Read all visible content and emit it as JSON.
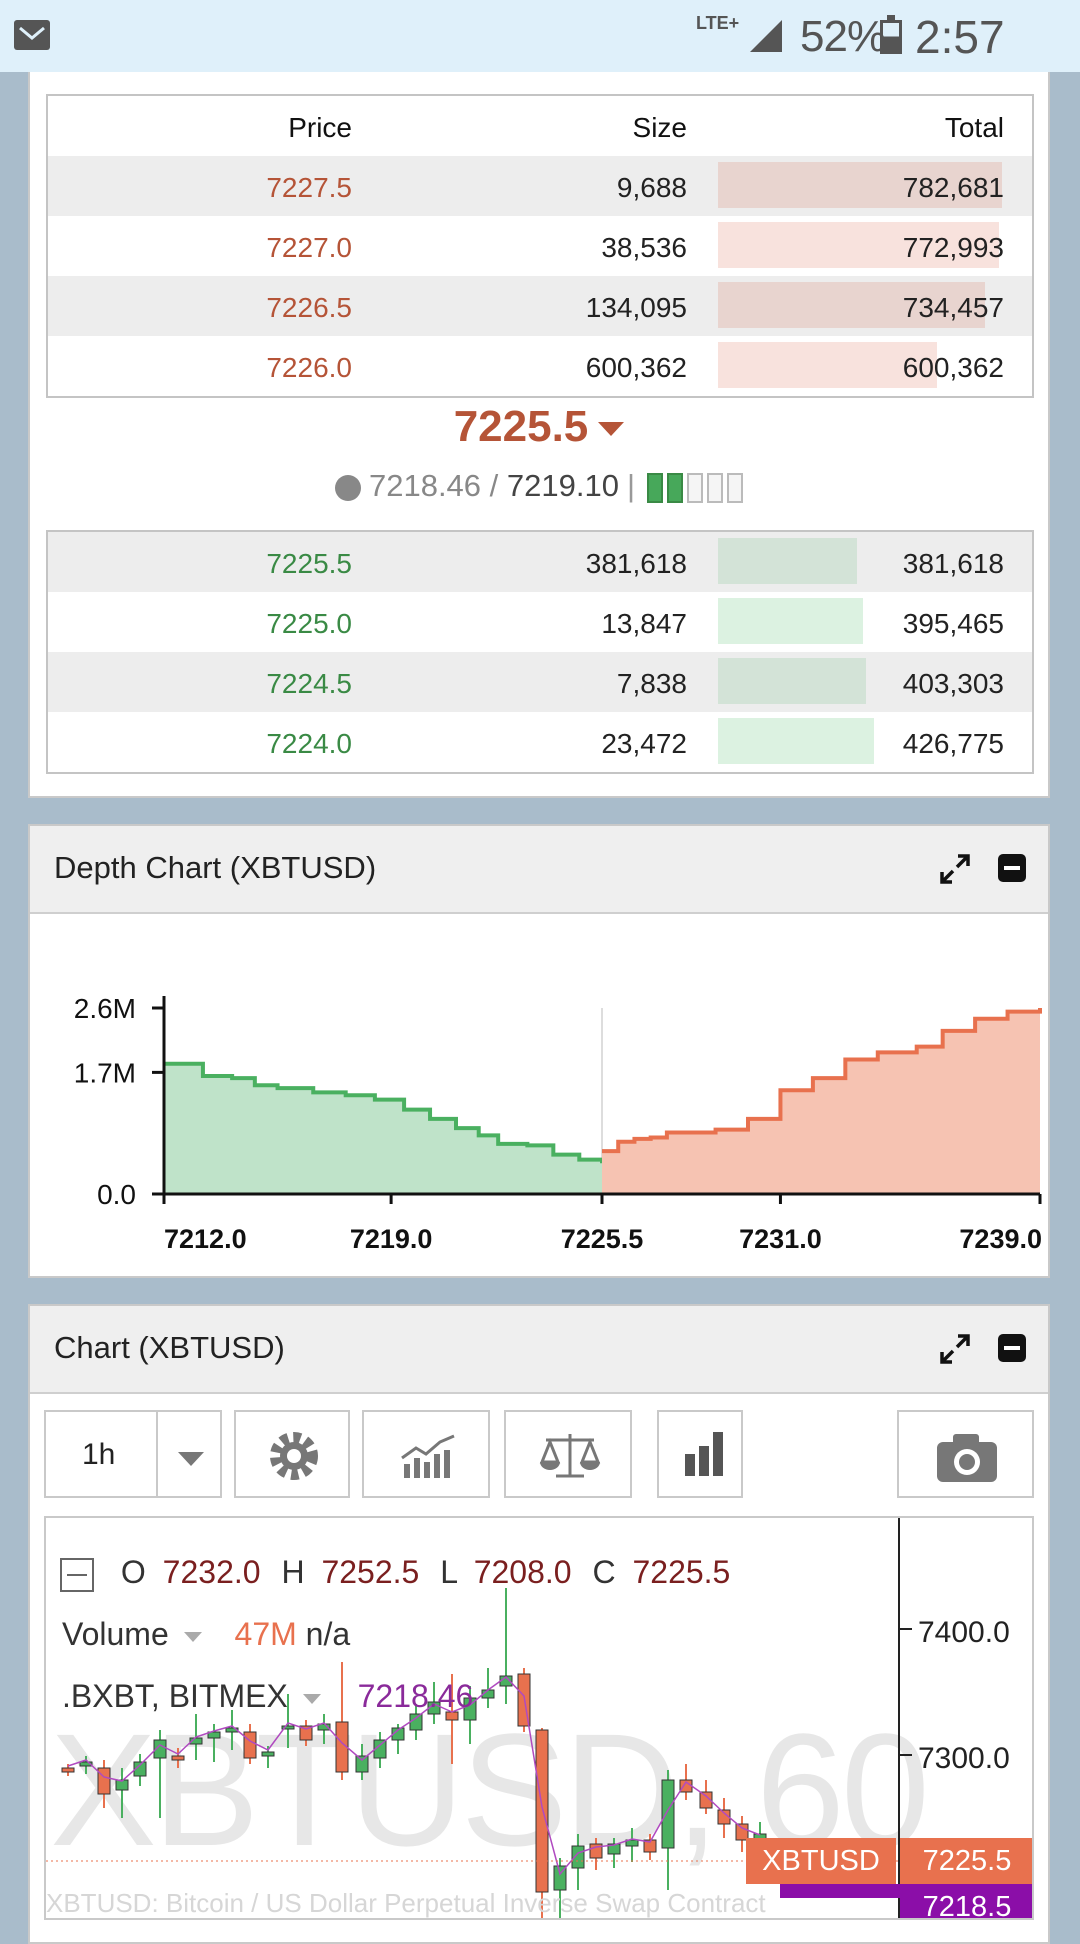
{
  "status": {
    "network": "LTE+",
    "battery": "52%",
    "time": "2:57 PM"
  },
  "orderbook": {
    "headers": {
      "price": "Price",
      "size": "Size",
      "total": "Total"
    },
    "asks": [
      {
        "price": "7227.5",
        "size": "9,688",
        "total": "782,681",
        "fill": 1.0
      },
      {
        "price": "7227.0",
        "size": "38,536",
        "total": "772,993",
        "fill": 0.99
      },
      {
        "price": "7226.5",
        "size": "134,095",
        "total": "734,457",
        "fill": 0.94
      },
      {
        "price": "7226.0",
        "size": "600,362",
        "total": "600,362",
        "fill": 0.77
      }
    ],
    "mid_price": "7225.5",
    "index_price": "7218.46",
    "fair_price": "7219.10",
    "separator": "|",
    "bids": [
      {
        "price": "7225.5",
        "size": "381,618",
        "total": "381,618",
        "fill": 0.49
      },
      {
        "price": "7225.0",
        "size": "13,847",
        "total": "395,465",
        "fill": 0.51
      },
      {
        "price": "7224.5",
        "size": "7,838",
        "total": "403,303",
        "fill": 0.52
      },
      {
        "price": "7224.0",
        "size": "23,472",
        "total": "426,775",
        "fill": 0.55
      }
    ],
    "colors": {
      "ask": "#b55437",
      "bid": "#3a8a45"
    }
  },
  "depth_panel": {
    "title": "Depth Chart (XBTUSD)"
  },
  "chart_data": {
    "type": "area",
    "title": "Depth Chart (XBTUSD)",
    "x_ticks": [
      "7212.0",
      "7219.0",
      "7225.5",
      "7231.0",
      "7239.0"
    ],
    "y_ticks": [
      "2.6M",
      "1.7M",
      "0.0"
    ],
    "xlim": [
      7212.0,
      7239.0
    ],
    "ylim": [
      0,
      2.6
    ],
    "series": [
      {
        "color": "#4ab060",
        "x": [
          7212.0,
          7213.2,
          7214.1,
          7214.8,
          7215.5,
          7216.6,
          7217.6,
          7218.5,
          7219.4,
          7220.2,
          7221.0,
          7221.7,
          7222.3,
          7223.2,
          7224.0,
          7224.8,
          7225.5
        ],
        "y": [
          1.82,
          1.65,
          1.62,
          1.52,
          1.48,
          1.42,
          1.38,
          1.32,
          1.18,
          1.05,
          0.92,
          0.82,
          0.7,
          0.68,
          0.55,
          0.48,
          0.43
        ]
      },
      {
        "color": "#e8714e",
        "x": [
          7225.5,
          7226.0,
          7226.5,
          7227.0,
          7227.5,
          7229.0,
          7230.0,
          7231.0,
          7232.0,
          7233.0,
          7234.0,
          7235.2,
          7236.0,
          7237.0,
          7238.0,
          7239.0
        ],
        "y": [
          0.6,
          0.73,
          0.77,
          0.79,
          0.86,
          0.9,
          1.05,
          1.45,
          1.62,
          1.88,
          1.98,
          2.06,
          2.28,
          2.45,
          2.55,
          2.6
        ]
      }
    ]
  },
  "chart_panel": {
    "title": "Chart (XBTUSD)",
    "interval": "1h",
    "ohlc": {
      "o_label": "O",
      "o": "7232.0",
      "h_label": "H",
      "h": "7252.5",
      "l_label": "L",
      "l": "7208.0",
      "c_label": "C",
      "c": "7225.5"
    },
    "volume_label": "Volume",
    "volume_value": "47M",
    "volume_extra": "n/a",
    "index_label": ".BXBT, BITMEX",
    "index_value": "7218.46",
    "watermark": "XBTUSD, 60",
    "price_ticks": [
      "7400.0",
      "7300.0"
    ],
    "last_symbol": "XBTUSD",
    "last_price": "7225.5",
    "index_tag": "7218.5",
    "footer": "XBTUSD: Bitcoin / US Dollar Perpetual Inverse Swap Contract"
  }
}
